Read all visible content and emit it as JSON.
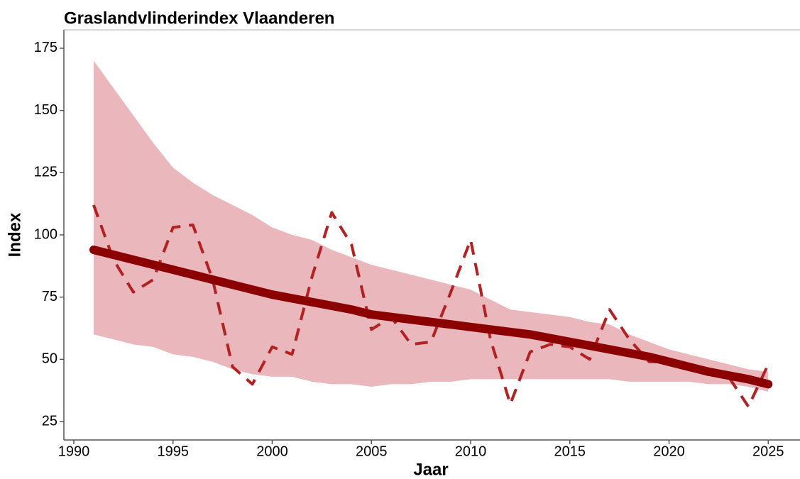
{
  "chart_data": {
    "type": "line",
    "title": "Graslandvlinderindex Vlaanderen",
    "xlabel": "Jaar",
    "ylabel": "Index",
    "x": [
      1991,
      1992,
      1993,
      1994,
      1995,
      1996,
      1997,
      1998,
      1999,
      2000,
      2001,
      2002,
      2003,
      2004,
      2005,
      2006,
      2007,
      2008,
      2009,
      2010,
      2011,
      2012,
      2013,
      2014,
      2015,
      2016,
      2017,
      2018,
      2019,
      2020,
      2021,
      2022,
      2023,
      2024,
      2025
    ],
    "series": [
      {
        "color": "#b22222",
        "style": "dashed",
        "width": 4,
        "values": [
          112,
          90,
          77,
          82,
          103,
          104,
          82,
          47,
          40,
          55,
          52,
          83,
          109,
          96,
          62,
          67,
          56,
          57,
          77,
          98,
          58,
          32,
          53,
          56,
          55,
          50,
          70,
          58,
          49,
          49,
          47,
          45,
          43,
          31,
          48
        ]
      },
      {
        "color": "#8b0000",
        "style": "solid",
        "width": 12,
        "values": [
          94,
          92,
          90,
          88,
          86,
          84,
          82,
          80,
          78,
          76,
          74.5,
          73,
          71.5,
          70,
          68,
          67,
          66,
          65,
          64,
          63,
          62,
          61,
          60,
          58.5,
          57,
          55.5,
          54,
          52.5,
          51,
          49,
          47,
          45,
          43.5,
          42,
          40
        ]
      }
    ],
    "band": {
      "color": "#e9b7bc",
      "upper": [
        170,
        159,
        148,
        137,
        127,
        121,
        116,
        112,
        108,
        103,
        100,
        98,
        94,
        91,
        88,
        86,
        84,
        82,
        80,
        78,
        74,
        70,
        69,
        68,
        67,
        65,
        64,
        60,
        57,
        54,
        52,
        50,
        48,
        46,
        45
      ],
      "lower": [
        60,
        58,
        56,
        55,
        52,
        51,
        49,
        46,
        44,
        43,
        43,
        41,
        40,
        40,
        39,
        40,
        40,
        41,
        41,
        42,
        42,
        42,
        42,
        42,
        42,
        42,
        42,
        41,
        41,
        41,
        41,
        40,
        40,
        39,
        37
      ]
    },
    "xlim": [
      1989.5,
      2026.6
    ],
    "xticks": [
      1990,
      1995,
      2000,
      2005,
      2010,
      2015,
      2020,
      2025
    ],
    "ylim": [
      17.6,
      182.4
    ],
    "yticks": [
      25,
      50,
      75,
      100,
      125,
      150,
      175
    ],
    "grid": false
  }
}
